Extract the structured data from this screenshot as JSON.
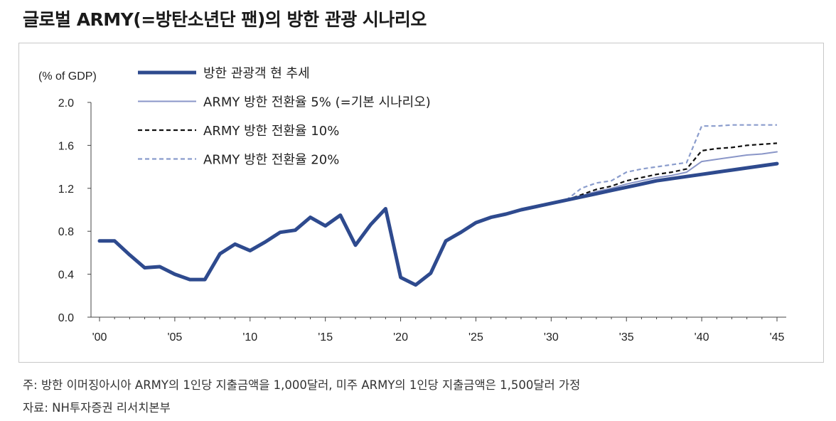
{
  "title": "글로벌 ARMY(=방탄소년단 팬)의 방한 관광 시나리오",
  "notes": {
    "footnote": "주: 방한 이머징아시아 ARMY의 1인당 지출금액을 1,000달러, 미주 ARMY의 1인당 지출금액은 1,500달러 가정",
    "source": "자료: NH투자증권 리서치본부"
  },
  "chart_data": {
    "type": "line",
    "ylabel": "(% of GDP)",
    "ylim": [
      0.0,
      2.0
    ],
    "yticks": [
      "2.0",
      "1.6",
      "1.2",
      "0.8",
      "0.4",
      "0.0"
    ],
    "yticks_values": [
      2.0,
      1.6,
      1.2,
      0.8,
      0.4,
      0.0
    ],
    "xlim": [
      2000,
      2045
    ],
    "xticks": [
      "'00",
      "'05",
      "'10",
      "'15",
      "'20",
      "'25",
      "'30",
      "'35",
      "'40",
      "'45"
    ],
    "xticks_values": [
      2000,
      2005,
      2010,
      2015,
      2020,
      2025,
      2030,
      2035,
      2040,
      2045
    ],
    "legend_position": "top-left",
    "grid": false,
    "series": [
      {
        "name": "방한 관광객 현 추세",
        "color": "#2e4a8e",
        "style": "solid-thick",
        "x": [
          2000,
          2001,
          2002,
          2003,
          2004,
          2005,
          2006,
          2007,
          2008,
          2009,
          2010,
          2011,
          2012,
          2013,
          2014,
          2015,
          2016,
          2017,
          2018,
          2019,
          2020,
          2021,
          2022,
          2023,
          2024,
          2025,
          2026,
          2027,
          2028,
          2029,
          2030,
          2031,
          2032,
          2033,
          2034,
          2035,
          2036,
          2037,
          2038,
          2039,
          2040,
          2041,
          2042,
          2043,
          2044,
          2045
        ],
        "values": [
          0.71,
          0.71,
          0.58,
          0.46,
          0.47,
          0.4,
          0.35,
          0.35,
          0.59,
          0.68,
          0.62,
          0.7,
          0.79,
          0.81,
          0.93,
          0.85,
          0.95,
          0.67,
          0.86,
          1.01,
          0.37,
          0.3,
          0.41,
          0.71,
          0.79,
          0.88,
          0.93,
          0.96,
          1.0,
          1.03,
          1.06,
          1.09,
          1.12,
          1.15,
          1.18,
          1.21,
          1.24,
          1.27,
          1.29,
          1.31,
          1.33,
          1.35,
          1.37,
          1.39,
          1.41,
          1.43
        ]
      },
      {
        "name": "ARMY 방한 전환율 5% (=기본 시나리오)",
        "color": "#8a96c8",
        "style": "solid-thin",
        "x": [
          2025,
          2026,
          2027,
          2028,
          2029,
          2030,
          2031,
          2032,
          2033,
          2034,
          2035,
          2036,
          2037,
          2038,
          2039,
          2040,
          2041,
          2042,
          2043,
          2044,
          2045
        ],
        "values": [
          0.88,
          0.93,
          0.96,
          1.0,
          1.03,
          1.06,
          1.09,
          1.13,
          1.17,
          1.2,
          1.24,
          1.27,
          1.3,
          1.32,
          1.35,
          1.45,
          1.47,
          1.49,
          1.51,
          1.52,
          1.54
        ]
      },
      {
        "name": "ARMY 방한 전환율 10%",
        "color": "#111111",
        "style": "dashed",
        "x": [
          2031,
          2032,
          2033,
          2034,
          2035,
          2036,
          2037,
          2038,
          2039,
          2040,
          2041,
          2042,
          2043,
          2044,
          2045
        ],
        "values": [
          1.09,
          1.14,
          1.19,
          1.22,
          1.27,
          1.3,
          1.33,
          1.35,
          1.38,
          1.55,
          1.57,
          1.58,
          1.6,
          1.61,
          1.62
        ]
      },
      {
        "name": "ARMY 방한 전환율 20%",
        "color": "#8a9ccc",
        "style": "dashed",
        "x": [
          2031,
          2032,
          2033,
          2034,
          2035,
          2036,
          2037,
          2038,
          2039,
          2040,
          2041,
          2042,
          2043,
          2044,
          2045
        ],
        "values": [
          1.09,
          1.2,
          1.25,
          1.27,
          1.35,
          1.38,
          1.4,
          1.42,
          1.44,
          1.78,
          1.78,
          1.79,
          1.79,
          1.79,
          1.79
        ]
      }
    ]
  }
}
